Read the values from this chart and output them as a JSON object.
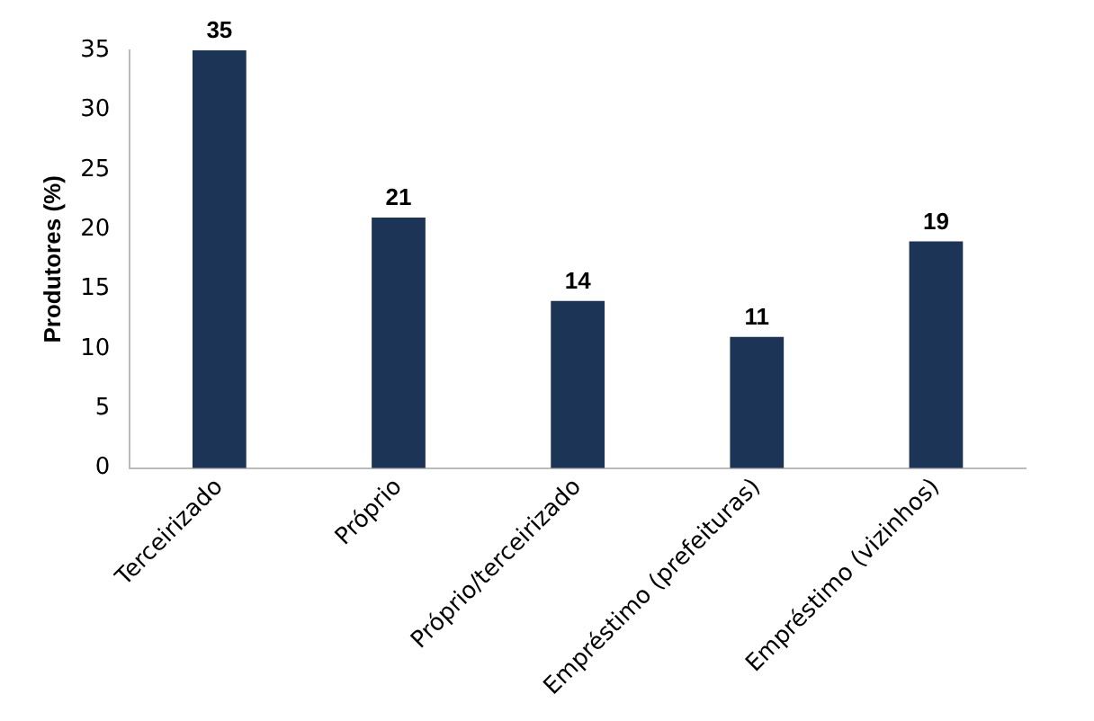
{
  "chart_data": {
    "type": "bar",
    "ylabel": "Produtores (%)",
    "categories": [
      "Terceirizado",
      "Próprio",
      "Próprio/terceirizado",
      "Empréstimo (prefeituras)",
      "Empréstimo (vizinhos)"
    ],
    "values": [
      35,
      21,
      14,
      11,
      19
    ],
    "color": "#1c3557",
    "ylim": [
      0,
      35
    ],
    "yticks": [
      0,
      5,
      10,
      15,
      20,
      25,
      30,
      35
    ],
    "grid": false,
    "legend": false,
    "data_labels": true
  }
}
